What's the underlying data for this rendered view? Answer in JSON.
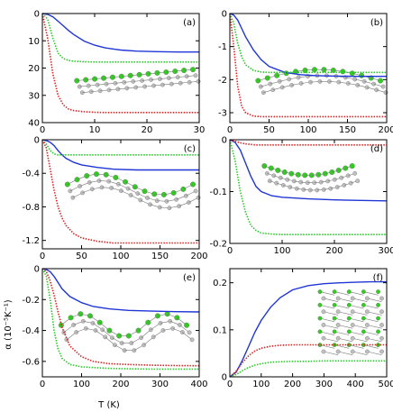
{
  "figure": {
    "ylabel": "α (10⁻⁵K⁻¹)",
    "xlabel": "T (K)"
  },
  "colors": {
    "series_a": "#1f35d6",
    "series_b": "#22cc22",
    "series_c": "#e02020",
    "atom_green": "#33cc22",
    "atom_grey": "#bfbfbf"
  },
  "chart_data": [
    {
      "panel": "(a)",
      "type": "line",
      "inset": "nanoribbon",
      "xlim": [
        0,
        30
      ],
      "ylim": [
        -40,
        0
      ],
      "xticks": [
        0,
        10,
        20,
        30
      ],
      "xtick_labels": [
        "0",
        "10",
        "20",
        "30"
      ],
      "yticks": [
        0,
        -10,
        -20,
        -30,
        -40
      ],
      "ytick_labels": [
        "0",
        "10",
        "20",
        "30",
        "40"
      ],
      "x": [
        0,
        1,
        2,
        3,
        4,
        5,
        6,
        8,
        10,
        12,
        15,
        18,
        22,
        26,
        30
      ],
      "series": [
        {
          "color": "blue",
          "style": "solid",
          "values": [
            0,
            -0.3,
            -1.2,
            -2.8,
            -4.5,
            -6.2,
            -7.7,
            -10.1,
            -11.6,
            -12.6,
            -13.4,
            -13.8,
            -14.0,
            -14.1,
            -14.1
          ]
        },
        {
          "color": "green",
          "style": "dotted",
          "values": [
            0,
            -2.0,
            -9.0,
            -14.5,
            -16.5,
            -17.2,
            -17.5,
            -17.7,
            -17.8,
            -17.8,
            -17.8,
            -17.8,
            -17.8,
            -17.8,
            -17.8
          ]
        },
        {
          "color": "red",
          "style": "dotted",
          "values": [
            0,
            -9.0,
            -22.0,
            -30.0,
            -33.5,
            -35.0,
            -35.6,
            -36.0,
            -36.2,
            -36.3,
            -36.3,
            -36.3,
            -36.3,
            -36.3,
            -36.3
          ]
        }
      ]
    },
    {
      "panel": "(b)",
      "type": "line",
      "inset": "nanoribbon",
      "xlim": [
        0,
        200
      ],
      "ylim": [
        -3.3,
        0
      ],
      "xticks": [
        0,
        50,
        100,
        150,
        200
      ],
      "xtick_labels": [
        "0",
        "50",
        "100",
        "150",
        "200"
      ],
      "yticks": [
        0,
        -1,
        -2,
        -3
      ],
      "ytick_labels": [
        "0",
        "-1",
        "-2",
        "-3"
      ],
      "x": [
        0,
        5,
        10,
        15,
        20,
        30,
        40,
        50,
        70,
        90,
        110,
        130,
        160,
        200
      ],
      "series": [
        {
          "color": "blue",
          "style": "solid",
          "values": [
            0,
            -0.05,
            -0.2,
            -0.45,
            -0.7,
            -1.1,
            -1.4,
            -1.6,
            -1.78,
            -1.85,
            -1.88,
            -1.89,
            -1.9,
            -1.9
          ]
        },
        {
          "color": "green",
          "style": "dotted",
          "values": [
            0,
            -0.3,
            -0.9,
            -1.3,
            -1.55,
            -1.72,
            -1.77,
            -1.78,
            -1.78,
            -1.78,
            -1.78,
            -1.78,
            -1.78,
            -1.78
          ]
        },
        {
          "color": "red",
          "style": "dotted",
          "values": [
            0,
            -1.0,
            -2.2,
            -2.8,
            -3.0,
            -3.1,
            -3.12,
            -3.12,
            -3.12,
            -3.12,
            -3.12,
            -3.12,
            -3.12,
            -3.12
          ]
        }
      ]
    },
    {
      "panel": "(c)",
      "type": "line",
      "inset": "nanoribbon",
      "xlim": [
        0,
        200
      ],
      "ylim": [
        -1.3,
        0
      ],
      "xticks": [
        0,
        50,
        100,
        150,
        200
      ],
      "xtick_labels": [
        "0",
        "50",
        "100",
        "150",
        "200"
      ],
      "yticks": [
        0,
        -0.4,
        -0.8,
        -1.2
      ],
      "ytick_labels": [
        "0",
        "-0.4",
        "-0.8",
        "-1.2"
      ],
      "x": [
        0,
        5,
        10,
        15,
        20,
        25,
        30,
        40,
        50,
        70,
        90,
        120,
        150,
        200
      ],
      "series": [
        {
          "color": "blue",
          "style": "solid",
          "values": [
            0,
            -0.01,
            -0.03,
            -0.07,
            -0.13,
            -0.18,
            -0.22,
            -0.27,
            -0.3,
            -0.33,
            -0.35,
            -0.36,
            -0.36,
            -0.36
          ]
        },
        {
          "color": "green",
          "style": "dotted",
          "values": [
            0,
            -0.05,
            -0.13,
            -0.17,
            -0.18,
            -0.18,
            -0.18,
            -0.18,
            -0.18,
            -0.18,
            -0.18,
            -0.18,
            -0.18,
            -0.18
          ]
        },
        {
          "color": "red",
          "style": "dotted",
          "values": [
            0,
            -0.1,
            -0.35,
            -0.6,
            -0.8,
            -0.93,
            -1.02,
            -1.12,
            -1.17,
            -1.21,
            -1.23,
            -1.23,
            -1.23,
            -1.23
          ]
        }
      ]
    },
    {
      "panel": "(d)",
      "type": "line",
      "inset": "nanoribbon",
      "xlim": [
        0,
        300
      ],
      "ylim": [
        -0.2,
        0
      ],
      "xticks": [
        0,
        100,
        200,
        300
      ],
      "xtick_labels": [
        "0",
        "100",
        "200",
        "300"
      ],
      "yticks": [
        0,
        -0.1,
        -0.2
      ],
      "ytick_labels": [
        "0",
        "-0.1",
        "-0.2"
      ],
      "x": [
        0,
        10,
        20,
        30,
        40,
        50,
        60,
        80,
        100,
        150,
        200,
        250,
        300
      ],
      "series": [
        {
          "color": "blue",
          "style": "solid",
          "values": [
            0,
            -0.005,
            -0.02,
            -0.045,
            -0.07,
            -0.09,
            -0.1,
            -0.108,
            -0.111,
            -0.114,
            -0.116,
            -0.117,
            -0.118
          ]
        },
        {
          "color": "green",
          "style": "dotted",
          "values": [
            0,
            -0.04,
            -0.1,
            -0.14,
            -0.165,
            -0.175,
            -0.18,
            -0.182,
            -0.183,
            -0.183,
            -0.183,
            -0.183,
            -0.183
          ]
        },
        {
          "color": "red",
          "style": "dotted",
          "values": [
            0,
            -0.003,
            -0.006,
            -0.008,
            -0.009,
            -0.01,
            -0.01,
            -0.01,
            -0.01,
            -0.01,
            -0.01,
            -0.01,
            -0.01
          ]
        }
      ]
    },
    {
      "panel": "(e)",
      "type": "line",
      "inset": "nanoribbon",
      "xlim": [
        0,
        400
      ],
      "ylim": [
        -0.7,
        0
      ],
      "xticks": [
        0,
        100,
        200,
        300,
        400
      ],
      "xtick_labels": [
        "0",
        "100",
        "200",
        "300",
        "400"
      ],
      "yticks": [
        0,
        -0.2,
        -0.4,
        -0.6
      ],
      "ytick_labels": [
        "0",
        "-0.2",
        "-0.4",
        "-0.6"
      ],
      "x": [
        0,
        10,
        20,
        30,
        40,
        50,
        70,
        100,
        130,
        170,
        220,
        280,
        340,
        400
      ],
      "series": [
        {
          "color": "blue",
          "style": "solid",
          "values": [
            0,
            -0.005,
            -0.02,
            -0.05,
            -0.09,
            -0.13,
            -0.18,
            -0.22,
            -0.245,
            -0.26,
            -0.27,
            -0.275,
            -0.278,
            -0.28
          ]
        },
        {
          "color": "green",
          "style": "dotted",
          "values": [
            0,
            -0.05,
            -0.2,
            -0.4,
            -0.52,
            -0.58,
            -0.62,
            -0.635,
            -0.64,
            -0.645,
            -0.648,
            -0.65,
            -0.65,
            -0.65
          ]
        },
        {
          "color": "red",
          "style": "dotted",
          "values": [
            0,
            -0.02,
            -0.08,
            -0.17,
            -0.28,
            -0.38,
            -0.5,
            -0.57,
            -0.6,
            -0.615,
            -0.62,
            -0.625,
            -0.627,
            -0.628
          ]
        }
      ]
    },
    {
      "panel": "(f)",
      "type": "line",
      "inset": "nanotube",
      "xlim": [
        0,
        500
      ],
      "ylim": [
        0,
        0.23
      ],
      "xticks": [
        0,
        100,
        200,
        300,
        400,
        500
      ],
      "xtick_labels": [
        "0",
        "100",
        "200",
        "300",
        "400",
        "500"
      ],
      "yticks": [
        0,
        0.1,
        0.2
      ],
      "ytick_labels": [
        "0",
        "0.1",
        "0.2"
      ],
      "x": [
        0,
        20,
        40,
        60,
        80,
        100,
        130,
        160,
        200,
        250,
        300,
        350,
        400,
        450,
        500
      ],
      "series": [
        {
          "color": "blue",
          "style": "solid",
          "values": [
            0,
            0.01,
            0.035,
            0.065,
            0.095,
            0.12,
            0.148,
            0.168,
            0.185,
            0.194,
            0.198,
            0.2,
            0.201,
            0.202,
            0.202
          ]
        },
        {
          "color": "green",
          "style": "dotted",
          "values": [
            0,
            0.005,
            0.013,
            0.02,
            0.025,
            0.028,
            0.031,
            0.032,
            0.033,
            0.033,
            0.034,
            0.034,
            0.034,
            0.034,
            0.034
          ]
        },
        {
          "color": "red",
          "style": "dotted",
          "values": [
            0,
            0.012,
            0.03,
            0.045,
            0.055,
            0.061,
            0.065,
            0.067,
            0.068,
            0.068,
            0.068,
            0.068,
            0.068,
            0.068,
            0.068
          ]
        }
      ]
    }
  ]
}
